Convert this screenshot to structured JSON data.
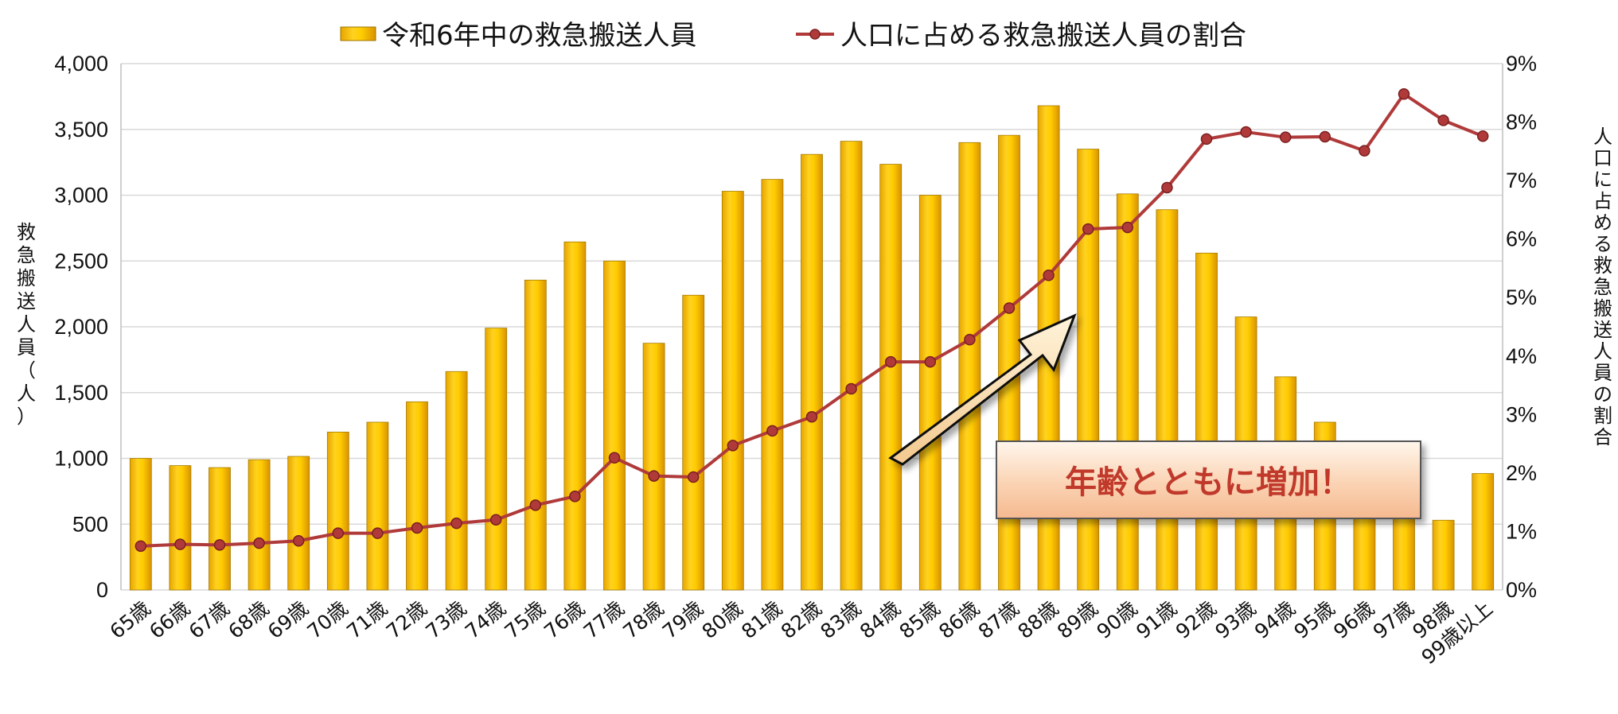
{
  "chart_data": {
    "type": "bar",
    "categories": [
      "65歳",
      "66歳",
      "67歳",
      "68歳",
      "69歳",
      "70歳",
      "71歳",
      "72歳",
      "73歳",
      "74歳",
      "75歳",
      "76歳",
      "77歳",
      "78歳",
      "79歳",
      "80歳",
      "81歳",
      "82歳",
      "83歳",
      "84歳",
      "85歳",
      "86歳",
      "87歳",
      "88歳",
      "89歳",
      "90歳",
      "91歳",
      "92歳",
      "93歳",
      "94歳",
      "95歳",
      "96歳",
      "97歳",
      "98歳",
      "99歳以上"
    ],
    "series": [
      {
        "name": "令和6年中の救急搬送人員",
        "type": "bar",
        "axis": "left",
        "color": "#FFC000",
        "values": [
          1000,
          945,
          930,
          990,
          1015,
          1200,
          1275,
          1430,
          1660,
          1990,
          2355,
          2645,
          2500,
          1875,
          2240,
          3030,
          3120,
          3310,
          3410,
          3235,
          3000,
          3400,
          3455,
          3680,
          3350,
          3010,
          2890,
          2560,
          2075,
          1620,
          1275,
          1020,
          880,
          530,
          885
        ]
      },
      {
        "name": "人口に占める救急搬送人員の割合",
        "type": "line",
        "axis": "right",
        "color": "#B03A3A",
        "values": [
          0.75,
          0.78,
          0.77,
          0.8,
          0.84,
          0.97,
          0.97,
          1.06,
          1.14,
          1.2,
          1.45,
          1.6,
          2.26,
          1.95,
          1.93,
          2.47,
          2.72,
          2.96,
          3.44,
          3.9,
          3.9,
          4.28,
          4.82,
          5.38,
          6.17,
          6.2,
          6.88,
          7.71,
          7.83,
          7.74,
          7.75,
          7.51,
          8.48,
          8.03,
          7.76
        ]
      }
    ],
    "yaxis_left": {
      "label": "救急搬送人員（人）",
      "min": 0,
      "max": 4000,
      "step": 500,
      "tick_labels": [
        "0",
        "500",
        "1,000",
        "1,500",
        "2,000",
        "2,500",
        "3,000",
        "3,500",
        "4,000"
      ]
    },
    "yaxis_right": {
      "label": "人口に占める救急搬送人員の割合",
      "min": 0,
      "max": 9,
      "step": 1,
      "tick_labels": [
        "0%",
        "1%",
        "2%",
        "3%",
        "4%",
        "5%",
        "6%",
        "7%",
        "8%",
        "9%"
      ]
    },
    "grid": true,
    "legend_position": "top",
    "annotation": {
      "text": "年齢とともに増加！",
      "arrow_direction": "up-right"
    }
  }
}
